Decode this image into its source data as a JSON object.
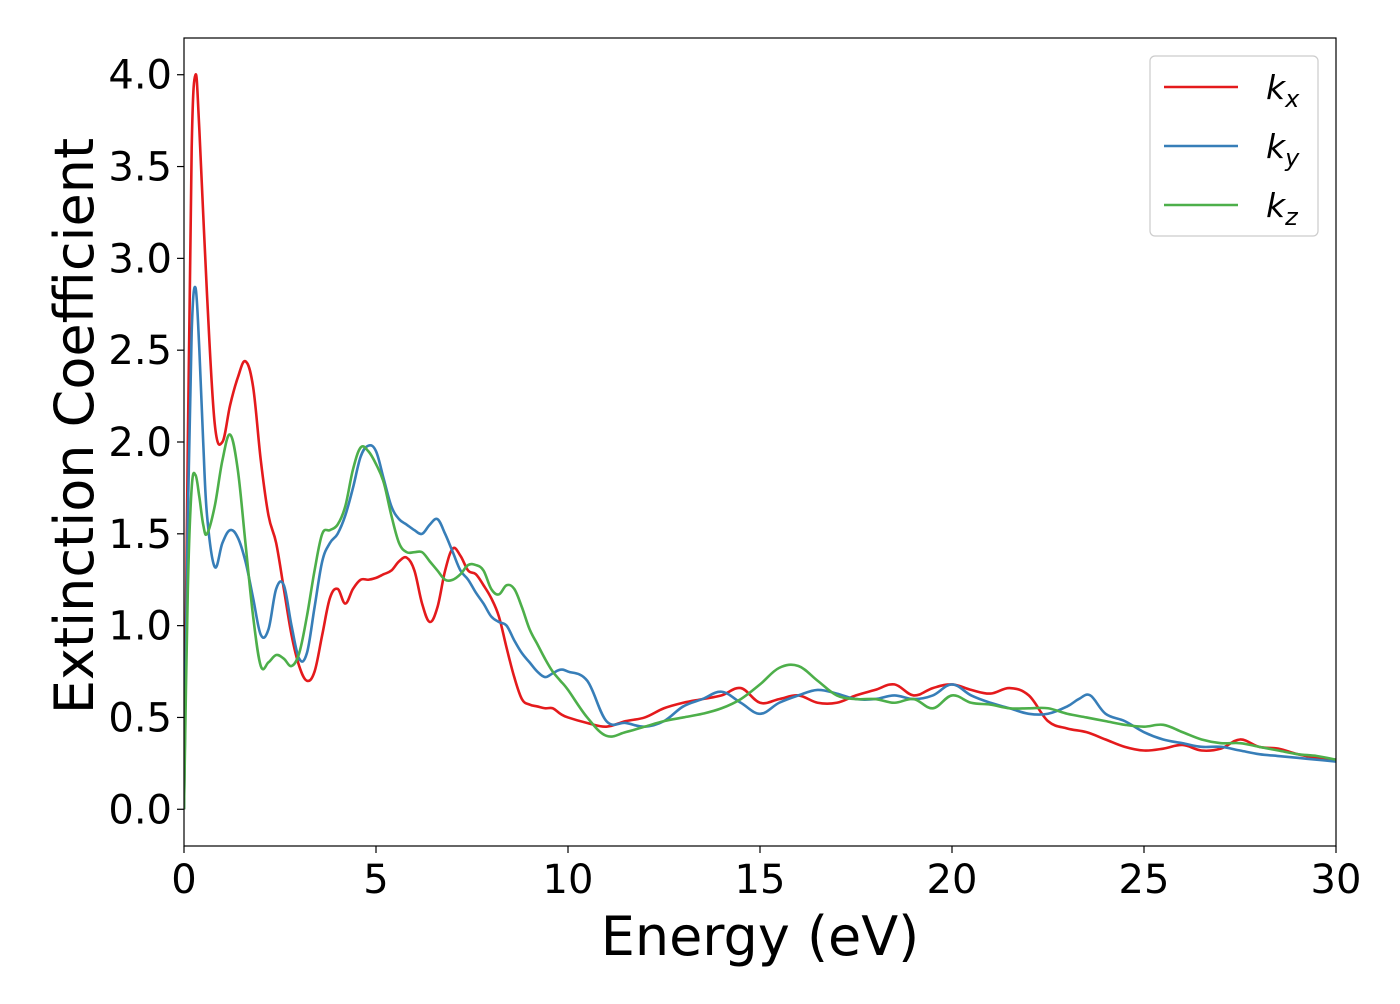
{
  "chart_data": {
    "type": "line",
    "title": "",
    "xlabel": "Energy (eV)",
    "ylabel": "Extinction Coefficient",
    "xlim": [
      0,
      30
    ],
    "ylim": [
      -0.2,
      4.2
    ],
    "xticks": [
      0,
      5,
      10,
      15,
      20,
      25,
      30
    ],
    "xtick_labels": [
      "0",
      "5",
      "10",
      "15",
      "20",
      "25",
      "30"
    ],
    "yticks": [
      0.0,
      0.5,
      1.0,
      1.5,
      2.0,
      2.5,
      3.0,
      3.5,
      4.0
    ],
    "ytick_labels": [
      "0.0",
      "0.5",
      "1.0",
      "1.5",
      "2.0",
      "2.5",
      "3.0",
      "3.5",
      "4.0"
    ],
    "grid": false,
    "legend_position": "top-right",
    "series": [
      {
        "name": "k_x",
        "legend_base": "k",
        "legend_sub": "x",
        "color": "#e41a1c",
        "x": [
          0,
          0.1,
          0.2,
          0.3,
          0.4,
          0.6,
          0.8,
          1.0,
          1.2,
          1.4,
          1.6,
          1.8,
          2.0,
          2.2,
          2.4,
          2.6,
          2.8,
          3.0,
          3.2,
          3.4,
          3.6,
          3.8,
          4.0,
          4.2,
          4.4,
          4.6,
          4.8,
          5.0,
          5.2,
          5.4,
          5.6,
          5.8,
          6.0,
          6.2,
          6.4,
          6.6,
          6.8,
          7.0,
          7.2,
          7.4,
          7.6,
          7.8,
          8.0,
          8.2,
          8.4,
          8.6,
          8.8,
          9.0,
          9.2,
          9.4,
          9.6,
          9.8,
          10.0,
          10.5,
          11.0,
          11.5,
          12.0,
          12.5,
          13.0,
          13.5,
          14.0,
          14.5,
          15.0,
          15.5,
          16.0,
          16.5,
          17.0,
          17.5,
          18.0,
          18.5,
          19.0,
          19.5,
          20.0,
          20.5,
          21.0,
          21.5,
          22.0,
          22.5,
          23.0,
          23.5,
          24.0,
          24.5,
          25.0,
          25.5,
          26.0,
          26.5,
          27.0,
          27.5,
          28.0,
          28.5,
          29.0,
          29.5,
          30.0
        ],
        "y": [
          0.0,
          2.0,
          3.6,
          4.0,
          3.7,
          2.8,
          2.1,
          2.0,
          2.2,
          2.35,
          2.44,
          2.3,
          1.9,
          1.6,
          1.45,
          1.2,
          0.95,
          0.78,
          0.7,
          0.75,
          0.95,
          1.15,
          1.2,
          1.12,
          1.2,
          1.25,
          1.25,
          1.26,
          1.28,
          1.3,
          1.35,
          1.37,
          1.3,
          1.12,
          1.02,
          1.1,
          1.3,
          1.42,
          1.38,
          1.3,
          1.28,
          1.22,
          1.15,
          1.05,
          0.88,
          0.72,
          0.6,
          0.57,
          0.56,
          0.55,
          0.55,
          0.52,
          0.5,
          0.47,
          0.45,
          0.48,
          0.5,
          0.55,
          0.58,
          0.6,
          0.62,
          0.66,
          0.58,
          0.6,
          0.62,
          0.58,
          0.58,
          0.62,
          0.65,
          0.68,
          0.62,
          0.66,
          0.68,
          0.65,
          0.63,
          0.66,
          0.62,
          0.48,
          0.44,
          0.42,
          0.38,
          0.34,
          0.32,
          0.33,
          0.35,
          0.32,
          0.33,
          0.38,
          0.34,
          0.33,
          0.3,
          0.28,
          0.27
        ]
      },
      {
        "name": "k_y",
        "legend_base": "k",
        "legend_sub": "y",
        "color": "#377eb8",
        "x": [
          0,
          0.1,
          0.2,
          0.3,
          0.4,
          0.5,
          0.6,
          0.8,
          1.0,
          1.2,
          1.4,
          1.6,
          1.8,
          2.0,
          2.2,
          2.4,
          2.6,
          2.8,
          3.0,
          3.2,
          3.4,
          3.6,
          3.8,
          4.0,
          4.2,
          4.4,
          4.6,
          4.8,
          5.0,
          5.2,
          5.4,
          5.6,
          5.8,
          6.0,
          6.2,
          6.4,
          6.6,
          6.8,
          7.0,
          7.2,
          7.4,
          7.6,
          7.8,
          8.0,
          8.2,
          8.4,
          8.6,
          8.8,
          9.0,
          9.2,
          9.4,
          9.6,
          9.8,
          10.0,
          10.5,
          11.0,
          11.5,
          12.0,
          12.5,
          13.0,
          13.5,
          14.0,
          14.5,
          15.0,
          15.5,
          16.0,
          16.5,
          17.0,
          17.5,
          18.0,
          18.5,
          19.0,
          19.5,
          20.0,
          20.5,
          21.0,
          21.5,
          22.0,
          22.5,
          23.0,
          23.3,
          23.6,
          24.0,
          24.5,
          25.0,
          25.5,
          26.0,
          26.5,
          27.0,
          27.5,
          28.0,
          28.5,
          29.0,
          29.5,
          30.0
        ],
        "y": [
          0.0,
          1.6,
          2.6,
          2.84,
          2.5,
          2.0,
          1.6,
          1.32,
          1.45,
          1.52,
          1.48,
          1.35,
          1.15,
          0.95,
          0.98,
          1.2,
          1.22,
          1.0,
          0.82,
          0.85,
          1.1,
          1.35,
          1.45,
          1.5,
          1.6,
          1.75,
          1.92,
          1.98,
          1.95,
          1.8,
          1.65,
          1.58,
          1.55,
          1.52,
          1.5,
          1.55,
          1.58,
          1.5,
          1.4,
          1.3,
          1.25,
          1.18,
          1.12,
          1.05,
          1.02,
          1.0,
          0.92,
          0.85,
          0.8,
          0.75,
          0.72,
          0.74,
          0.76,
          0.75,
          0.7,
          0.48,
          0.47,
          0.45,
          0.48,
          0.56,
          0.6,
          0.64,
          0.58,
          0.52,
          0.58,
          0.62,
          0.65,
          0.63,
          0.6,
          0.6,
          0.62,
          0.6,
          0.62,
          0.68,
          0.62,
          0.58,
          0.55,
          0.52,
          0.52,
          0.56,
          0.6,
          0.62,
          0.52,
          0.48,
          0.42,
          0.38,
          0.36,
          0.34,
          0.34,
          0.32,
          0.3,
          0.29,
          0.28,
          0.27,
          0.26
        ]
      },
      {
        "name": "k_z",
        "legend_base": "k",
        "legend_sub": "z",
        "color": "#4daf4a",
        "x": [
          0,
          0.1,
          0.2,
          0.3,
          0.4,
          0.5,
          0.6,
          0.8,
          1.0,
          1.2,
          1.4,
          1.6,
          1.8,
          2.0,
          2.2,
          2.4,
          2.6,
          2.8,
          3.0,
          3.2,
          3.4,
          3.6,
          3.8,
          4.0,
          4.2,
          4.4,
          4.6,
          4.8,
          5.0,
          5.2,
          5.4,
          5.6,
          5.8,
          6.0,
          6.2,
          6.4,
          6.6,
          6.8,
          7.0,
          7.2,
          7.4,
          7.6,
          7.8,
          8.0,
          8.2,
          8.4,
          8.6,
          8.8,
          9.0,
          9.2,
          9.4,
          9.6,
          9.8,
          10.0,
          10.5,
          11.0,
          11.5,
          12.0,
          12.5,
          13.0,
          13.5,
          14.0,
          14.5,
          15.0,
          15.5,
          16.0,
          16.5,
          17.0,
          17.5,
          18.0,
          18.5,
          19.0,
          19.5,
          20.0,
          20.5,
          21.0,
          21.5,
          22.0,
          22.5,
          23.0,
          23.5,
          24.0,
          24.5,
          25.0,
          25.5,
          26.0,
          26.5,
          27.0,
          27.5,
          28.0,
          28.5,
          29.0,
          29.5,
          30.0
        ],
        "y": [
          0.0,
          1.2,
          1.75,
          1.82,
          1.7,
          1.55,
          1.5,
          1.65,
          1.9,
          2.04,
          1.85,
          1.45,
          1.05,
          0.78,
          0.8,
          0.84,
          0.82,
          0.78,
          0.85,
          1.05,
          1.3,
          1.5,
          1.52,
          1.55,
          1.65,
          1.85,
          1.97,
          1.95,
          1.88,
          1.78,
          1.6,
          1.45,
          1.4,
          1.4,
          1.4,
          1.35,
          1.3,
          1.25,
          1.25,
          1.28,
          1.33,
          1.33,
          1.3,
          1.2,
          1.17,
          1.22,
          1.2,
          1.1,
          0.98,
          0.9,
          0.82,
          0.75,
          0.7,
          0.65,
          0.5,
          0.4,
          0.42,
          0.45,
          0.48,
          0.5,
          0.52,
          0.55,
          0.6,
          0.68,
          0.77,
          0.78,
          0.7,
          0.62,
          0.6,
          0.6,
          0.58,
          0.6,
          0.55,
          0.62,
          0.58,
          0.57,
          0.55,
          0.55,
          0.55,
          0.52,
          0.5,
          0.48,
          0.46,
          0.45,
          0.46,
          0.42,
          0.38,
          0.36,
          0.36,
          0.34,
          0.32,
          0.3,
          0.29,
          0.27
        ]
      }
    ]
  }
}
